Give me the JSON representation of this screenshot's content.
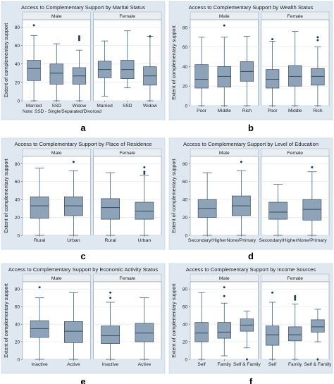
{
  "colors": {
    "box_fill": "#8fa3b8",
    "box_stroke": "#334c66",
    "whisker": "#334c66",
    "outlier": "#1a3d66",
    "panel_outer_bg": "#dfe8f0",
    "plot_bg": "#ffffff",
    "strip_bg": "#e9eef3",
    "grid": "#e3e8ee",
    "text": "#222222",
    "panel_letter": "#000000"
  },
  "chart_data": [
    {
      "type": "box",
      "panel_letter": "a",
      "title": "Access to Complementary Support by Marital Status",
      "ylabel": "Extent of complementary support",
      "ylim": [
        0,
        85
      ],
      "yticks": [
        0,
        20,
        40,
        60,
        80
      ],
      "grid": true,
      "note": "Note: SSD - Single/Separated/Divorced",
      "facets": [
        {
          "name": "Male",
          "categories": [
            "Married",
            "SSD",
            "Widow"
          ],
          "boxes": [
            {
              "whisker_low": 0,
              "q1": 22,
              "median": 35,
              "q3": 44,
              "whisker_high": 71,
              "outliers": [
                82
              ]
            },
            {
              "whisker_low": 0,
              "q1": 18,
              "median": 30,
              "q3": 40,
              "whisker_high": 62,
              "outliers": []
            },
            {
              "whisker_low": 0,
              "q1": 18,
              "median": 27,
              "q3": 36,
              "whisker_high": 55,
              "outliers": [
                66,
                68,
                70
              ]
            }
          ]
        },
        {
          "name": "Female",
          "categories": [
            "Married",
            "SSD",
            "Widow"
          ],
          "boxes": [
            {
              "whisker_low": 5,
              "q1": 25,
              "median": 34,
              "q3": 43,
              "whisker_high": 65,
              "outliers": []
            },
            {
              "whisker_low": 14,
              "q1": 24,
              "median": 34,
              "q3": 44,
              "whisker_high": 76,
              "outliers": []
            },
            {
              "whisker_low": 0,
              "q1": 17,
              "median": 27,
              "q3": 37,
              "whisker_high": 70,
              "outliers": [
                70
              ]
            }
          ]
        }
      ]
    },
    {
      "type": "box",
      "panel_letter": "b",
      "title": "Access to Complementary Support by Wealth Status",
      "ylabel": "Extent of complementary support",
      "ylim": [
        0,
        85
      ],
      "yticks": [
        0,
        20,
        40,
        60,
        80
      ],
      "grid": true,
      "facets": [
        {
          "name": "Male",
          "categories": [
            "Poor",
            "Middle",
            "Rich"
          ],
          "boxes": [
            {
              "whisker_low": 0,
              "q1": 18,
              "median": 27,
              "q3": 42,
              "whisker_high": 70,
              "outliers": []
            },
            {
              "whisker_low": 0,
              "q1": 19,
              "median": 30,
              "q3": 40,
              "whisker_high": 70,
              "outliers": [
                82
              ]
            },
            {
              "whisker_low": 0,
              "q1": 25,
              "median": 35,
              "q3": 45,
              "whisker_high": 71,
              "outliers": []
            }
          ]
        },
        {
          "name": "Female",
          "categories": [
            "Poor",
            "Middle",
            "Rich"
          ],
          "boxes": [
            {
              "whisker_low": 0,
              "q1": 18,
              "median": 27,
              "q3": 37,
              "whisker_high": 66,
              "outliers": [
                68
              ]
            },
            {
              "whisker_low": 0,
              "q1": 20,
              "median": 30,
              "q3": 41,
              "whisker_high": 76,
              "outliers": []
            },
            {
              "whisker_low": 0,
              "q1": 21,
              "median": 30,
              "q3": 38,
              "whisker_high": 60,
              "outliers": [
                67,
                70
              ]
            }
          ]
        }
      ]
    },
    {
      "type": "box",
      "panel_letter": "c",
      "title": "Access to Complementary Support by Place of Residence",
      "ylabel": "Extent of complementary support",
      "ylim": [
        0,
        85
      ],
      "yticks": [
        0,
        20,
        40,
        60,
        80
      ],
      "grid": true,
      "facets": [
        {
          "name": "Male",
          "categories": [
            "Rural",
            "Urban"
          ],
          "boxes": [
            {
              "whisker_low": 0,
              "q1": 19,
              "median": 33,
              "q3": 43,
              "whisker_high": 75,
              "outliers": []
            },
            {
              "whisker_low": 0,
              "q1": 22,
              "median": 33,
              "q3": 43,
              "whisker_high": 72,
              "outliers": [
                82
              ]
            }
          ]
        },
        {
          "name": "Female",
          "categories": [
            "Rural",
            "Urban"
          ],
          "boxes": [
            {
              "whisker_low": 0,
              "q1": 18,
              "median": 31,
              "q3": 41,
              "whisker_high": 70,
              "outliers": []
            },
            {
              "whisker_low": 0,
              "q1": 18,
              "median": 27,
              "q3": 37,
              "whisker_high": 67,
              "outliers": [
                69,
                71,
                76
              ]
            }
          ]
        }
      ]
    },
    {
      "type": "box",
      "panel_letter": "d",
      "title": "Access to Complementary Support by Level of Education",
      "ylabel": "Extent of complementary support",
      "ylim": [
        0,
        85
      ],
      "yticks": [
        0,
        20,
        40,
        60,
        80
      ],
      "grid": true,
      "facets": [
        {
          "name": "Male",
          "categories": [
            "Secondary/Higher",
            "None/Primary"
          ],
          "boxes": [
            {
              "whisker_low": 0,
              "q1": 20,
              "median": 30,
              "q3": 40,
              "whisker_high": 70,
              "outliers": []
            },
            {
              "whisker_low": 0,
              "q1": 22,
              "median": 33,
              "q3": 44,
              "whisker_high": 72,
              "outliers": [
                82
              ]
            }
          ]
        },
        {
          "name": "Female",
          "categories": [
            "Secondary/Higher",
            "None/Primary"
          ],
          "boxes": [
            {
              "whisker_low": 0,
              "q1": 18,
              "median": 26,
              "q3": 37,
              "whisker_high": 57,
              "outliers": []
            },
            {
              "whisker_low": 0,
              "q1": 17,
              "median": 29,
              "q3": 40,
              "whisker_high": 71,
              "outliers": [
                76
              ]
            }
          ]
        }
      ]
    },
    {
      "type": "box",
      "panel_letter": "e",
      "title": "Access to Complementary Support by Economic Activity Status",
      "ylabel": "Extent of complementary support",
      "ylim": [
        0,
        85
      ],
      "yticks": [
        0,
        20,
        40,
        60,
        80
      ],
      "grid": true,
      "facets": [
        {
          "name": "Male",
          "categories": [
            "Inactive",
            "Active"
          ],
          "boxes": [
            {
              "whisker_low": 0,
              "q1": 25,
              "median": 35,
              "q3": 44,
              "whisker_high": 70,
              "outliers": [
                82
              ]
            },
            {
              "whisker_low": 0,
              "q1": 19,
              "median": 32,
              "q3": 43,
              "whisker_high": 76,
              "outliers": []
            }
          ]
        },
        {
          "name": "Female",
          "categories": [
            "Inactive",
            "Active"
          ],
          "boxes": [
            {
              "whisker_low": 0,
              "q1": 18,
              "median": 27,
              "q3": 38,
              "whisker_high": 65,
              "outliers": [
                70,
                76
              ]
            },
            {
              "whisker_low": 0,
              "q1": 20,
              "median": 30,
              "q3": 41,
              "whisker_high": 70,
              "outliers": []
            }
          ]
        }
      ]
    },
    {
      "type": "box",
      "panel_letter": "f",
      "title": "Access to Complementary Support by Income Sources",
      "ylabel": "Extent of complementary support",
      "ylim": [
        0,
        85
      ],
      "yticks": [
        0,
        20,
        40,
        60,
        80
      ],
      "grid": true,
      "facets": [
        {
          "name": "Male",
          "categories": [
            "Self",
            "Family",
            "Self & Family"
          ],
          "boxes": [
            {
              "whisker_low": 0,
              "q1": 20,
              "median": 30,
              "q3": 42,
              "whisker_high": 76,
              "outliers": []
            },
            {
              "whisker_low": 4,
              "q1": 24,
              "median": 31,
              "q3": 42,
              "whisker_high": 64,
              "outliers": [
                72,
                82
              ]
            },
            {
              "whisker_low": 13,
              "q1": 32,
              "median": 39,
              "q3": 46,
              "whisker_high": 55,
              "outliers": [
                0
              ]
            }
          ]
        },
        {
          "name": "Female",
          "categories": [
            "Self",
            "Family",
            "Self & Family"
          ],
          "boxes": [
            {
              "whisker_low": 0,
              "q1": 16,
              "median": 28,
              "q3": 38,
              "whisker_high": 65,
              "outliers": [
                76
              ]
            },
            {
              "whisker_low": 0,
              "q1": 21,
              "median": 28,
              "q3": 37,
              "whisker_high": 63,
              "outliers": [
                68,
                70,
                72
              ]
            },
            {
              "whisker_low": 20,
              "q1": 31,
              "median": 37,
              "q3": 45,
              "whisker_high": 57,
              "outliers": [
                0
              ]
            }
          ]
        }
      ]
    }
  ]
}
